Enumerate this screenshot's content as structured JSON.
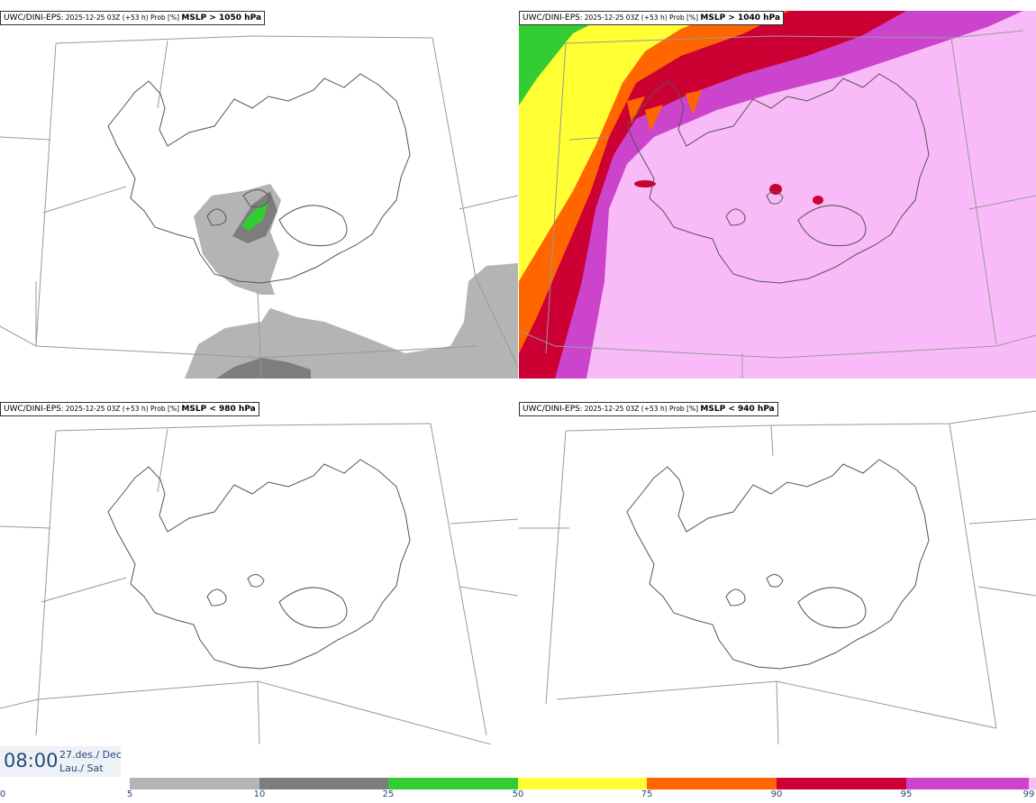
{
  "panels": [
    {
      "model": "UWC/DINI-EPS",
      "meta": ": 2025-12-25 03Z (+53 h) Prob [%] ",
      "condition": "MSLP > 1050 hPa"
    },
    {
      "model": "UWC/DINI-EPS",
      "meta": ": 2025-12-25 03Z (+53 h) Prob [%] ",
      "condition": "MSLP > 1040 hPa"
    },
    {
      "model": "UWC/DINI-EPS",
      "meta": ": 2025-12-25 03Z (+53 h) Prob [%] ",
      "condition": "MSLP < 980 hPa"
    },
    {
      "model": "UWC/DINI-EPS",
      "meta": ": 2025-12-25 03Z (+53 h) Prob [%] ",
      "condition": "MSLP < 940 hPa"
    }
  ],
  "valid_time": {
    "time": "08:00",
    "date_line1": "27.des./ Dec",
    "date_line2": "Lau./ Sat"
  },
  "legend": {
    "ticks": [
      "0",
      "5",
      "10",
      "25",
      "50",
      "75",
      "90",
      "95",
      "99"
    ],
    "bins": [
      {
        "from": "5",
        "to": "10",
        "color": "#b4b4b4"
      },
      {
        "from": "10",
        "to": "25",
        "color": "#7d7d7d"
      },
      {
        "from": "25",
        "to": "50",
        "color": "#33cc33"
      },
      {
        "from": "50",
        "to": "75",
        "color": "#ffff33"
      },
      {
        "from": "75",
        "to": "90",
        "color": "#ff6600"
      },
      {
        "from": "90",
        "to": "95",
        "color": "#cc0033"
      },
      {
        "from": "95",
        "to": "99",
        "color": "#cc44cc"
      },
      {
        "from": "99",
        "to": "",
        "color": "#f8bbf8"
      }
    ]
  },
  "colors": {
    "grid": "#999999",
    "coast": "#555555"
  }
}
